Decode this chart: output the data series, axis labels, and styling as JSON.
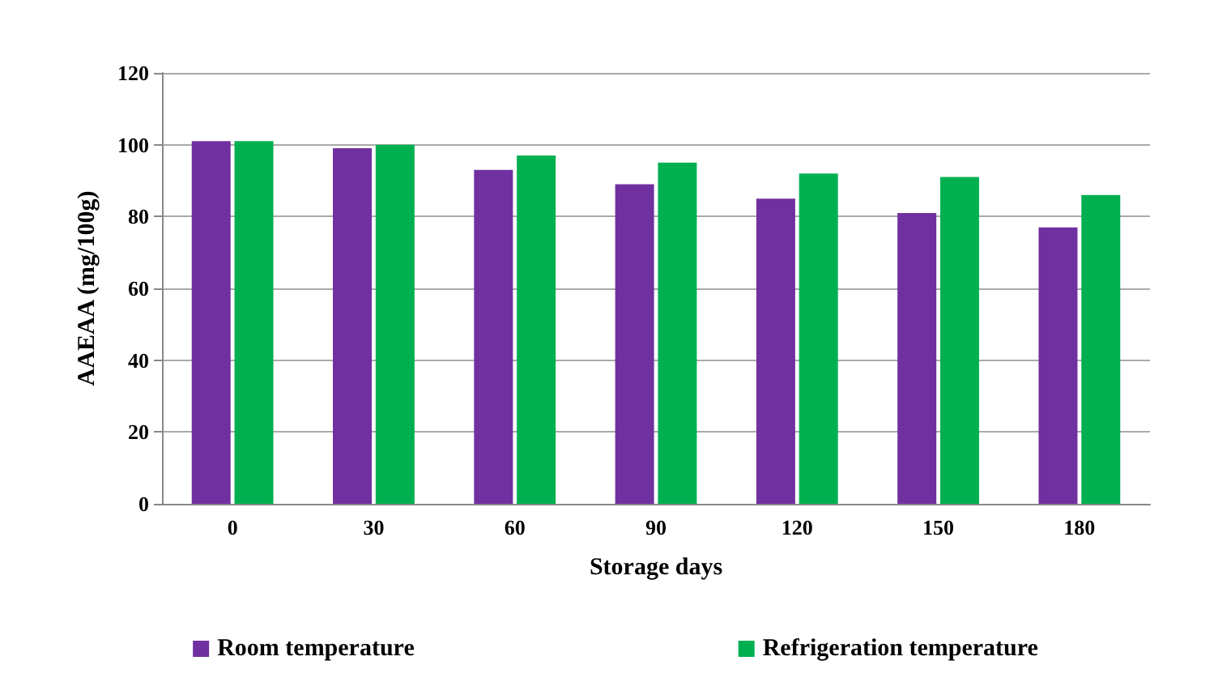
{
  "chart_data": {
    "type": "bar",
    "xlabel": "Storage days",
    "ylabel": "AAEAA (mg/100g)",
    "categories": [
      "0",
      "30",
      "60",
      "90",
      "120",
      "150",
      "180"
    ],
    "series": [
      {
        "name": "Room temperature",
        "color": "#7030a0",
        "values": [
          101,
          99,
          93,
          89,
          85,
          81,
          77
        ]
      },
      {
        "name": "Refrigeration temperature",
        "color": "#00b050",
        "values": [
          101,
          100,
          97,
          95,
          92,
          91,
          86
        ]
      }
    ],
    "ylim": [
      0,
      120
    ],
    "yticks": [
      0,
      20,
      40,
      60,
      80,
      100,
      120
    ],
    "grid": "y",
    "legend": "bottom"
  }
}
